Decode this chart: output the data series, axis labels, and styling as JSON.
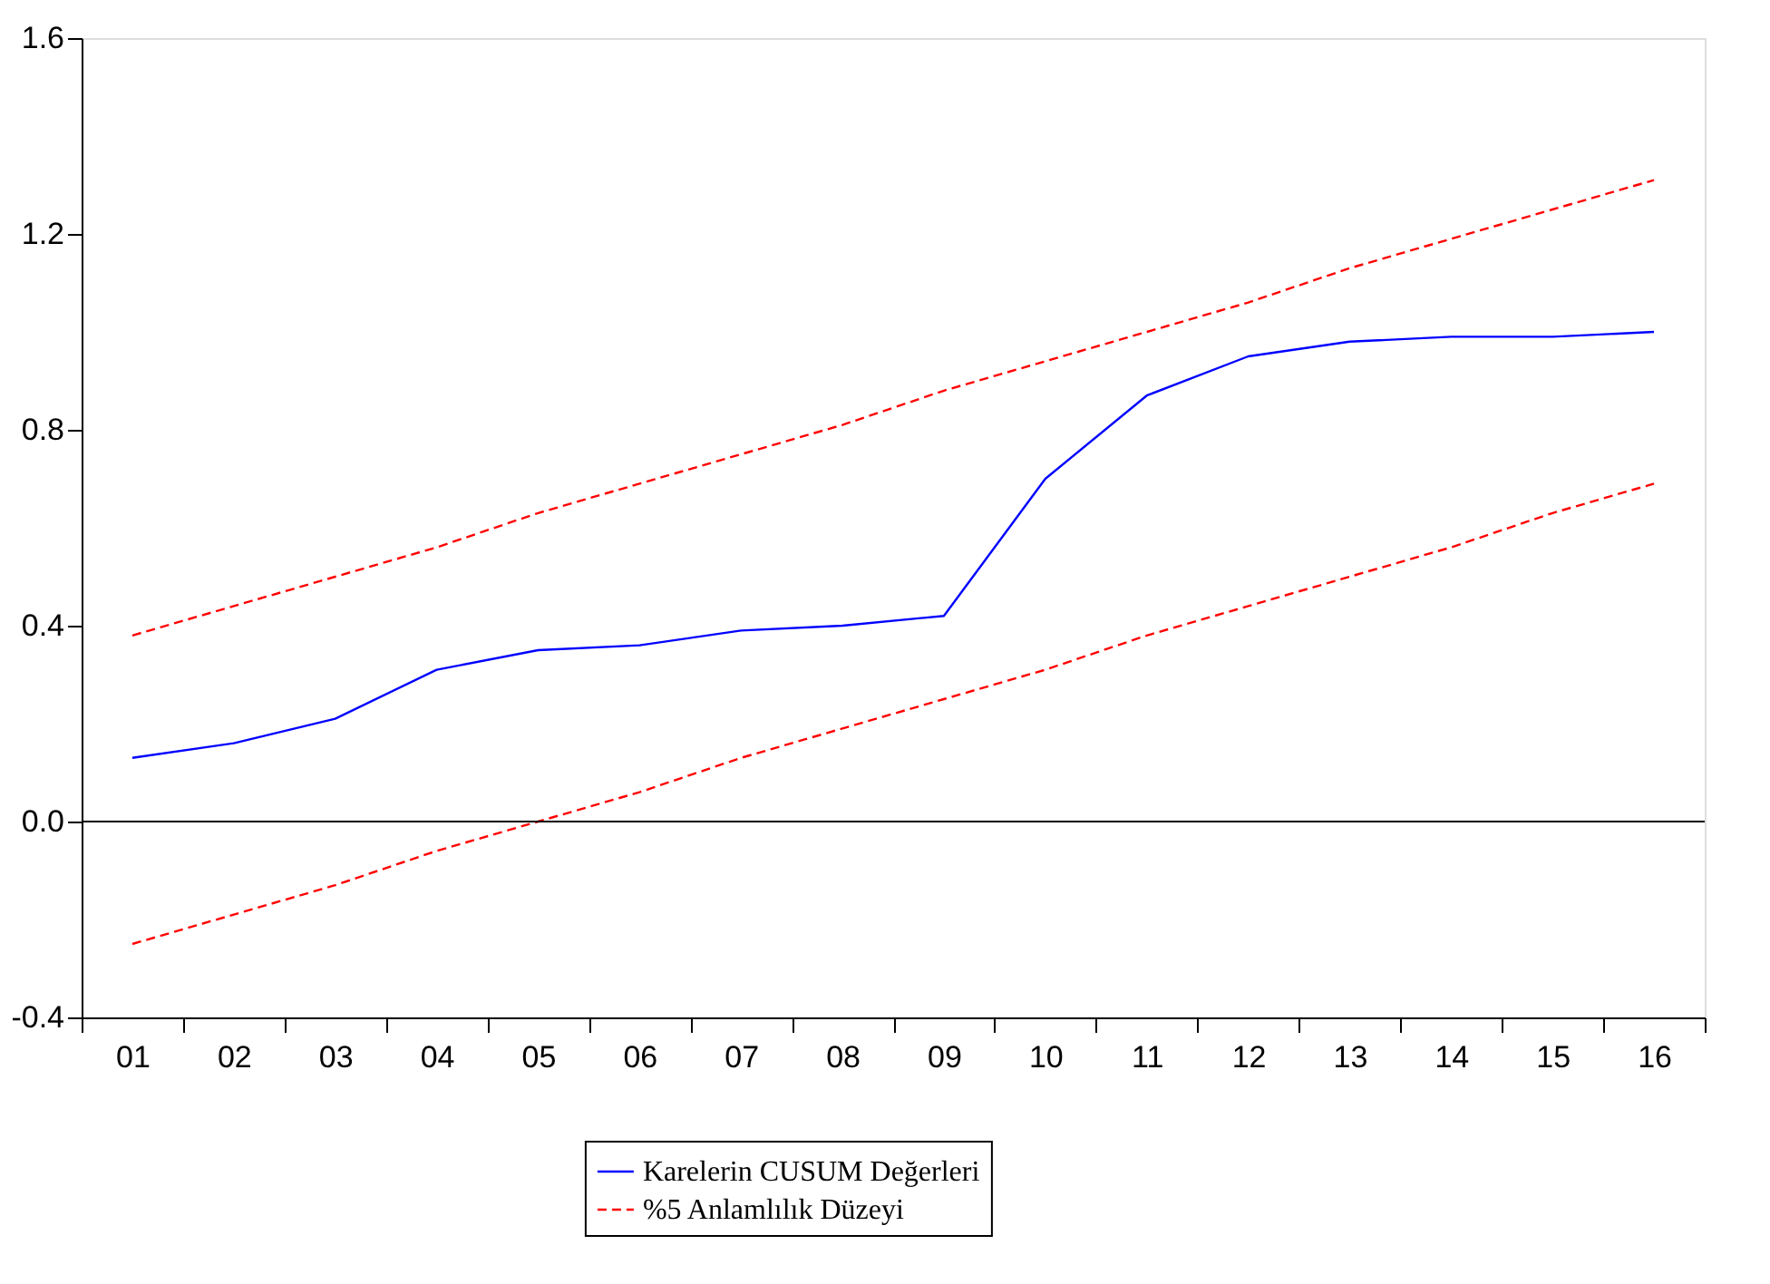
{
  "chart_data": {
    "type": "line",
    "categories": [
      "01",
      "02",
      "03",
      "04",
      "05",
      "06",
      "07",
      "08",
      "09",
      "10",
      "11",
      "12",
      "13",
      "14",
      "15",
      "16"
    ],
    "series": [
      {
        "name": "Karelerin CUSUM Değerleri",
        "color": "#0000ff",
        "line_style": "solid",
        "values": [
          0.13,
          0.16,
          0.21,
          0.31,
          0.35,
          0.36,
          0.39,
          0.4,
          0.42,
          0.7,
          0.87,
          0.95,
          0.98,
          0.99,
          0.99,
          1.0
        ]
      },
      {
        "name": "%5 Anlamlılık Düzeyi",
        "color": "#ff0000",
        "line_style": "dashed",
        "values": [
          0.38,
          0.44,
          0.5,
          0.56,
          0.63,
          0.69,
          0.75,
          0.81,
          0.88,
          0.94,
          1.0,
          1.06,
          1.13,
          1.19,
          1.25,
          1.31
        ]
      },
      {
        "color": "#ff0000",
        "line_style": "dashed",
        "values": [
          -0.25,
          -0.19,
          -0.13,
          -0.06,
          0.0,
          0.06,
          0.13,
          0.19,
          0.25,
          0.31,
          0.38,
          0.44,
          0.5,
          0.56,
          0.63,
          0.69
        ]
      }
    ],
    "ylim": [
      -0.4,
      1.6
    ],
    "yticks": [
      -0.4,
      {
        "value": 0,
        "label": "0.0"
      },
      0.4,
      0.8,
      1.2,
      1.6
    ],
    "ref_lines": [
      {
        "axis": "y",
        "value": 0,
        "color": "#000000",
        "line_style": "solid"
      }
    ],
    "grid": false,
    "legend": "bottom"
  }
}
